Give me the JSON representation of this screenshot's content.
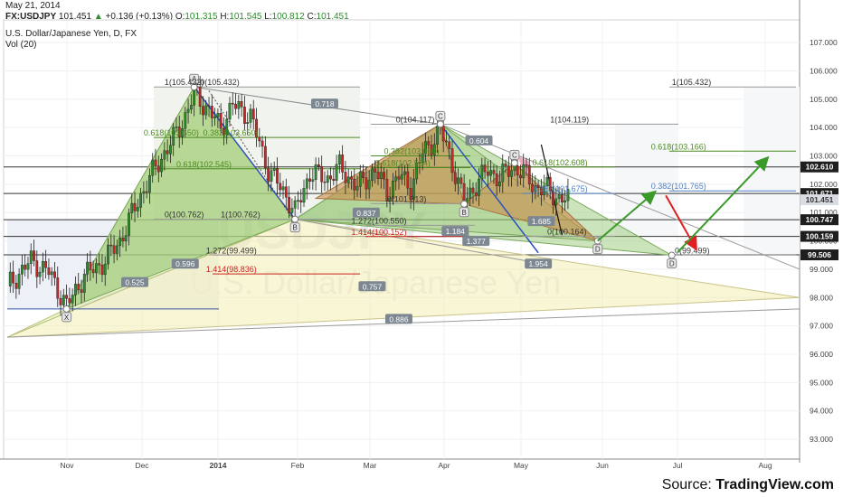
{
  "header": {
    "date": "May 21, 2014",
    "symbol": "FX:USDJPY",
    "last": "101.451",
    "change": "+0.136 (+0.13%)",
    "o_label": "O:",
    "o_value": "101.315",
    "h_label": "H:",
    "h_value": "101.545",
    "l_label": "L:",
    "l_value": "100.812",
    "c_label": "C:",
    "c_value": "101.451",
    "pair_title": "U.S. Dollar/Japanese Yen, D, FX",
    "indicator": "Vol (20)"
  },
  "watermark": {
    "symbol": "USDJPY",
    "name": "U.S. Dollar/Japanese Yen"
  },
  "source": {
    "prefix": "Source: ",
    "brand": "TradingView.com"
  },
  "colors": {
    "up": "#2e8b2e",
    "down": "#c62828",
    "green_pattern": "#8fc46a",
    "brown_pattern": "#c98a4b",
    "yellow_pattern": "#f3eeb0",
    "fib_green": "#4b8a1f",
    "fib_blue": "#4f7fc4",
    "fib_red": "#cc2222"
  },
  "chart_data": {
    "type": "candlestick",
    "title": "U.S. Dollar/Japanese Yen, D, FX",
    "y_axis": {
      "min": 92.3,
      "max": 107.8,
      "ticks": [
        "107.000",
        "106.000",
        "105.000",
        "104.000",
        "103.000",
        "102.000",
        "101.000",
        "100.000",
        "99.000",
        "98.000",
        "97.000",
        "96.000",
        "95.000",
        "94.000",
        "93.000"
      ]
    },
    "x_axis": {
      "ticks": [
        "Nov",
        "Dec",
        "2014",
        "Feb",
        "Mar",
        "Apr",
        "May",
        "Jun",
        "Jul",
        "Aug"
      ]
    },
    "price_tags": [
      {
        "value": 102.61,
        "text": "102.610",
        "style": "dark"
      },
      {
        "value": 101.671,
        "text": "101.671",
        "style": "dark"
      },
      {
        "value": 101.451,
        "text": "101.451",
        "style": "light"
      },
      {
        "value": 100.747,
        "text": "100.747",
        "style": "dark"
      },
      {
        "value": 100.159,
        "text": "100.159",
        "style": "dark"
      },
      {
        "value": 99.506,
        "text": "99.506",
        "style": "dark"
      }
    ],
    "horizontal_lines": [
      102.61,
      101.671,
      100.747,
      100.159,
      99.506
    ],
    "pattern_points": [
      {
        "label": "X",
        "date_index": 20,
        "price": 97.6
      },
      {
        "label": "A",
        "date_index": 63,
        "price": 105.432
      },
      {
        "label": "B",
        "date_index": 97,
        "price": 100.762
      },
      {
        "label": "C",
        "date_index": 146,
        "price": 104.119
      },
      {
        "label": "B",
        "date_index": 154,
        "price": 101.3
      },
      {
        "label": "C",
        "date_index": 171,
        "price": 102.75
      },
      {
        "label": "D",
        "date_index": 199,
        "price": 100.0
      },
      {
        "label": "D",
        "date_index": 224,
        "price": 99.49
      }
    ],
    "fib_labels": [
      {
        "text": "1(105.432)",
        "value": 105.432,
        "date_index": 53
      },
      {
        "text": "0(105.432)",
        "value": 105.432,
        "date_index": 65
      },
      {
        "text": "0.618(103.650)",
        "value": 103.65,
        "date_index": 46
      },
      {
        "text": "0.382(103.650)",
        "value": 103.65,
        "date_index": 66
      },
      {
        "text": "0.618(102.545)",
        "value": 102.545,
        "date_index": 57
      },
      {
        "text": "0(100.762)",
        "value": 100.762,
        "date_index": 53
      },
      {
        "text": "1(100.762)",
        "value": 100.762,
        "date_index": 72
      },
      {
        "text": "1.272(99.499)",
        "value": 99.499,
        "date_index": 67
      },
      {
        "text": "1.414(98.836)",
        "value": 98.836,
        "date_index": 67
      },
      {
        "text": "0(104.117)",
        "value": 104.117,
        "date_index": 131
      },
      {
        "text": "0.382(103.000)",
        "value": 103.0,
        "date_index": 127
      },
      {
        "text": "0.618(102.584)",
        "value": 102.584,
        "date_index": 124
      },
      {
        "text": "0(101.313)",
        "value": 101.313,
        "date_index": 128
      },
      {
        "text": "1.272(100.550)",
        "value": 100.55,
        "date_index": 116
      },
      {
        "text": "1.414(100.152)",
        "value": 100.152,
        "date_index": 116
      },
      {
        "text": "0.618(102.608)",
        "value": 102.608,
        "date_index": 177
      },
      {
        "text": "0.382(101.675)",
        "value": 101.675,
        "date_index": 177
      },
      {
        "text": "0(100.164)",
        "value": 100.164,
        "date_index": 182
      },
      {
        "text": "1(104.119)",
        "value": 104.119,
        "date_index": 183
      },
      {
        "text": "1(105.432)",
        "value": 105.432,
        "date_index": 224
      },
      {
        "text": "0.618(103.166)",
        "value": 103.166,
        "date_index": 217
      },
      {
        "text": "0.382(101.765)",
        "value": 101.765,
        "date_index": 217
      },
      {
        "text": "0(99.499)",
        "value": 99.499,
        "date_index": 225
      }
    ],
    "ratio_badges": [
      {
        "text": "0.718",
        "date_index": 107,
        "price": 104.8
      },
      {
        "text": "0.604",
        "date_index": 159,
        "price": 103.5
      },
      {
        "text": "0.837",
        "date_index": 121,
        "price": 100.95
      },
      {
        "text": "1.184",
        "date_index": 151,
        "price": 100.3
      },
      {
        "text": "1.685",
        "date_index": 180,
        "price": 100.65
      },
      {
        "text": "1.377",
        "date_index": 158,
        "price": 99.95
      },
      {
        "text": "0.596",
        "date_index": 60,
        "price": 99.15
      },
      {
        "text": "0.525",
        "date_index": 43,
        "price": 98.5
      },
      {
        "text": "1.954",
        "date_index": 179,
        "price": 99.15
      },
      {
        "text": "0.757",
        "date_index": 123,
        "price": 98.35
      },
      {
        "text": "0.886",
        "date_index": 132,
        "price": 97.2
      }
    ],
    "projection_arrows": [
      {
        "color": "green",
        "from": {
          "date_index": 199,
          "price": 100.0
        },
        "to": {
          "date_index": 218,
          "price": 101.7
        }
      },
      {
        "color": "red",
        "from": {
          "date_index": 222,
          "price": 101.6
        },
        "to": {
          "date_index": 232,
          "price": 99.75
        }
      },
      {
        "color": "green",
        "from": {
          "date_index": 226,
          "price": 99.6
        },
        "to": {
          "date_index": 256,
          "price": 102.9
        }
      }
    ]
  }
}
